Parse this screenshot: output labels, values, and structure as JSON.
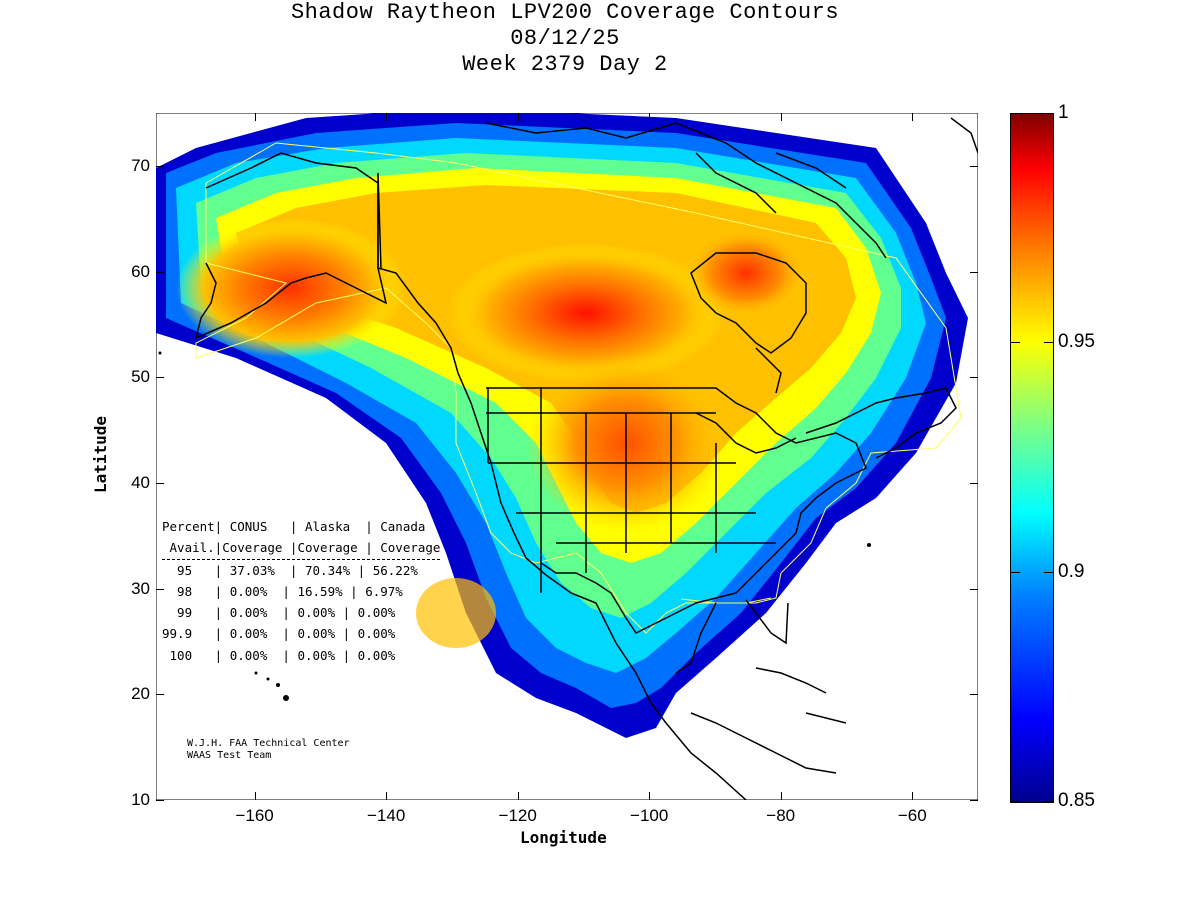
{
  "title": {
    "line1": "Shadow Raytheon LPV200 Coverage Contours",
    "line2": "08/12/25",
    "line3": "Week 2379 Day 2"
  },
  "axes": {
    "xlabel": "Longitude",
    "ylabel": "Latitude",
    "xlim": [
      -175,
      -50
    ],
    "ylim": [
      10,
      75
    ],
    "xticks": [
      -160,
      -140,
      -120,
      -100,
      -80,
      -60
    ],
    "yticks": [
      10,
      20,
      30,
      40,
      50,
      60,
      70
    ]
  },
  "colorbar": {
    "range": [
      0.85,
      1
    ],
    "ticks": [
      "1",
      "0.95",
      "0.9",
      "0.85"
    ]
  },
  "stats_table": {
    "header1": "Percent| CONUS   | Alaska  | Canada",
    "header2": " Avail.|Coverage |Coverage | Coverage",
    "rows": [
      "  95   | 37.03%  | 70.34% | 56.22%",
      "  98   | 0.00%  | 16.59% | 6.97%",
      "  99   | 0.00%  | 0.00% | 0.00%",
      "99.9   | 0.00%  | 0.00% | 0.00%",
      " 100   | 0.00%  | 0.00% | 0.00%"
    ]
  },
  "credit": {
    "line1": "W.J.H. FAA Technical Center",
    "line2": "WAAS Test Team"
  },
  "colors": {
    "outline": "#000000",
    "service_boundary": "#ffff66"
  }
}
